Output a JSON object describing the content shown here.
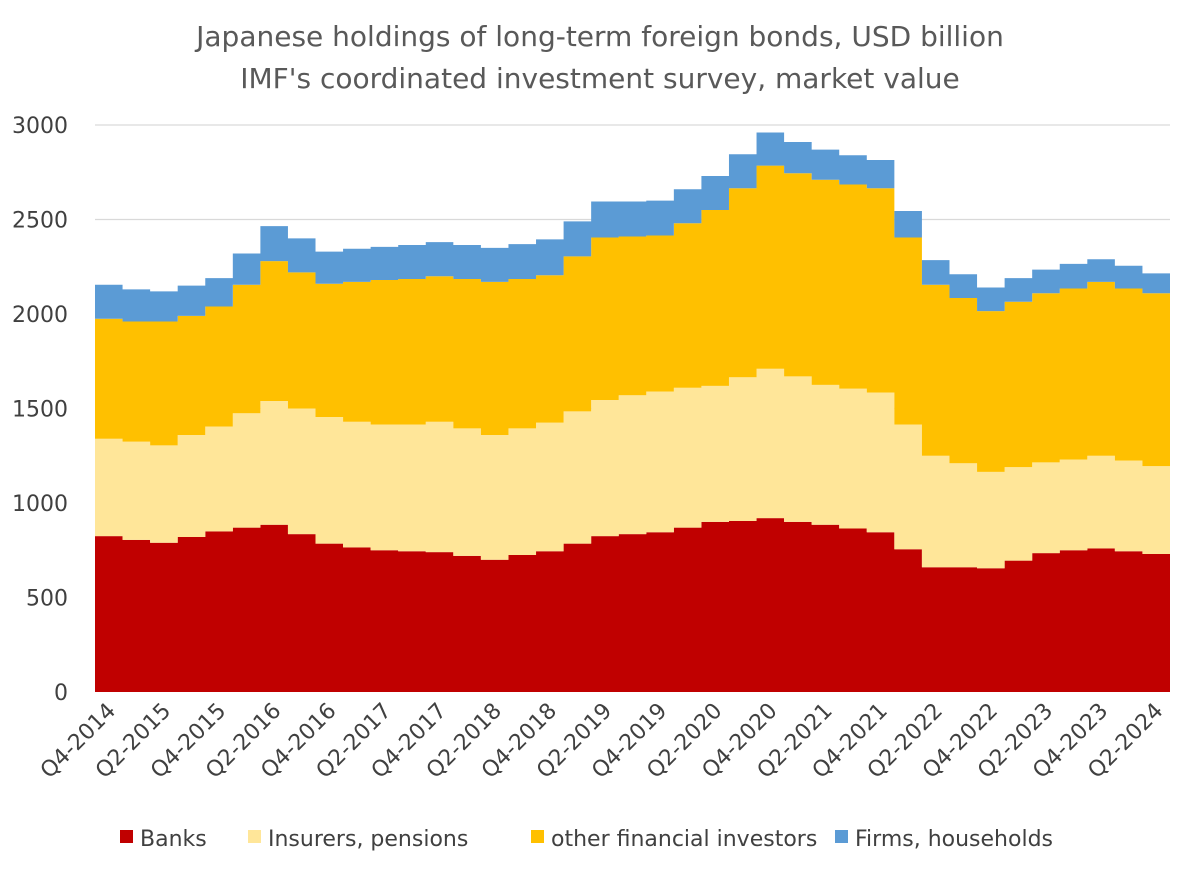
{
  "chart_data": {
    "type": "area",
    "stacked": true,
    "title": "Japanese holdings of long-term foreign bonds, USD billion",
    "subtitle": "IMF's coordinated investment survey, market value",
    "xlabel": "",
    "ylabel": "",
    "ylim": [
      0,
      3000
    ],
    "yticks": [
      0,
      500,
      1000,
      1500,
      2000,
      2500,
      3000
    ],
    "grid": true,
    "legend_position": "bottom",
    "x": [
      "Q4-2014",
      "Q1-2015",
      "Q2-2015",
      "Q3-2015",
      "Q4-2015",
      "Q1-2016",
      "Q2-2016",
      "Q3-2016",
      "Q4-2016",
      "Q1-2017",
      "Q2-2017",
      "Q3-2017",
      "Q4-2017",
      "Q1-2018",
      "Q2-2018",
      "Q3-2018",
      "Q4-2018",
      "Q1-2019",
      "Q2-2019",
      "Q3-2019",
      "Q4-2019",
      "Q1-2020",
      "Q2-2020",
      "Q3-2020",
      "Q4-2020",
      "Q1-2021",
      "Q2-2021",
      "Q3-2021",
      "Q4-2021",
      "Q1-2022",
      "Q2-2022",
      "Q3-2022",
      "Q4-2022",
      "Q1-2023",
      "Q2-2023",
      "Q3-2023",
      "Q4-2023",
      "Q1-2024",
      "Q2-2024"
    ],
    "x_tick_labels": [
      "Q4-2014",
      "Q2-2015",
      "Q4-2015",
      "Q2-2016",
      "Q4-2016",
      "Q2-2017",
      "Q4-2017",
      "Q2-2018",
      "Q4-2018",
      "Q2-2019",
      "Q4-2019",
      "Q2-2020",
      "Q4-2020",
      "Q2-2021",
      "Q4-2021",
      "Q2-2022",
      "Q4-2022",
      "Q2-2023",
      "Q4-2023",
      "Q2-2024"
    ],
    "series": [
      {
        "name": "Banks",
        "color": "#c00000",
        "values": [
          825,
          805,
          790,
          820,
          850,
          870,
          885,
          835,
          785,
          765,
          750,
          745,
          740,
          720,
          700,
          725,
          745,
          785,
          825,
          835,
          845,
          870,
          900,
          905,
          920,
          900,
          885,
          865,
          845,
          755,
          660,
          660,
          655,
          695,
          735,
          750,
          760,
          745,
          730
        ]
      },
      {
        "name": "Insurers, pensions",
        "color": "#ffe699",
        "values": [
          515,
          520,
          515,
          540,
          555,
          605,
          655,
          665,
          670,
          665,
          665,
          670,
          690,
          675,
          660,
          670,
          680,
          700,
          720,
          735,
          745,
          740,
          720,
          760,
          790,
          770,
          740,
          740,
          740,
          660,
          590,
          550,
          510,
          495,
          480,
          480,
          490,
          480,
          465
        ]
      },
      {
        "name": "other financial investors",
        "color": "#ffc000",
        "values": [
          635,
          635,
          655,
          630,
          635,
          680,
          740,
          720,
          705,
          740,
          765,
          770,
          770,
          790,
          810,
          790,
          780,
          820,
          860,
          840,
          825,
          870,
          930,
          1000,
          1075,
          1075,
          1085,
          1080,
          1080,
          990,
          905,
          875,
          850,
          875,
          895,
          905,
          920,
          910,
          915
        ]
      },
      {
        "name": "Firms, households",
        "color": "#5b9bd5",
        "values": [
          180,
          170,
          160,
          160,
          150,
          165,
          185,
          180,
          170,
          175,
          175,
          180,
          180,
          180,
          180,
          185,
          190,
          185,
          190,
          185,
          185,
          180,
          180,
          180,
          175,
          165,
          160,
          155,
          150,
          140,
          130,
          125,
          125,
          125,
          125,
          130,
          120,
          120,
          105
        ]
      }
    ]
  }
}
